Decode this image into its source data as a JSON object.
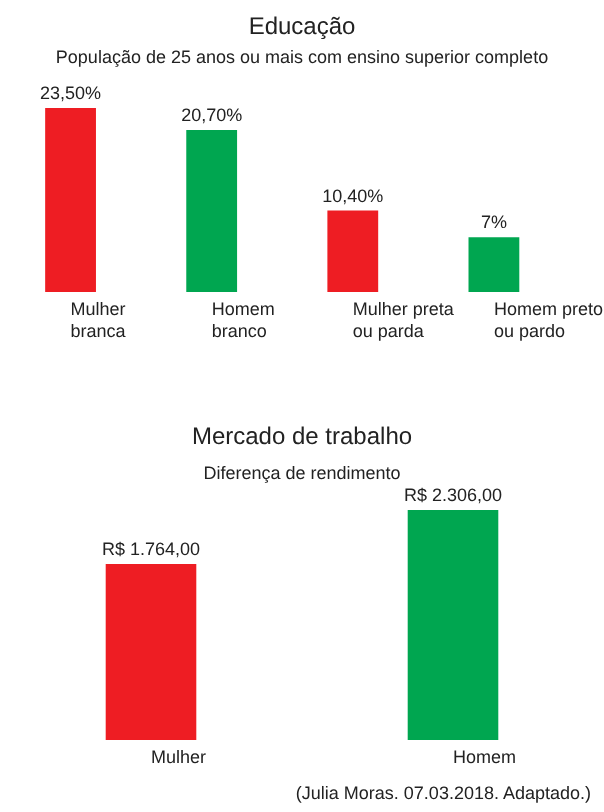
{
  "chart_data": [
    {
      "type": "bar",
      "title": "Educação",
      "subtitle": "População de 25 anos ou mais com ensino superior completo",
      "categories": [
        "Mulher\nbranca",
        "Homem\nbranco",
        "Mulher preta\nou parda",
        "Homem preto\nou pardo"
      ],
      "values": [
        23.5,
        20.7,
        10.4,
        7
      ],
      "colors": [
        "#ee1d23",
        "#00a650",
        "#ee1d23",
        "#00a650"
      ],
      "value_labels": [
        "23,50%",
        "20,70%",
        "10,40%",
        "7%"
      ]
    },
    {
      "type": "bar",
      "title": "Mercado de trabalho",
      "subtitle": "Diferença de rendimento",
      "categories": [
        "Mulher",
        "Homem"
      ],
      "values": [
        1764,
        2306
      ],
      "colors": [
        "#ee1d23",
        "#00a650"
      ],
      "value_labels": [
        "R$ 1.764,00",
        "R$ 2.306,00"
      ],
      "annotations": [
        "(Julia Moras. 07.03.2018. Adaptado.)"
      ]
    }
  ]
}
